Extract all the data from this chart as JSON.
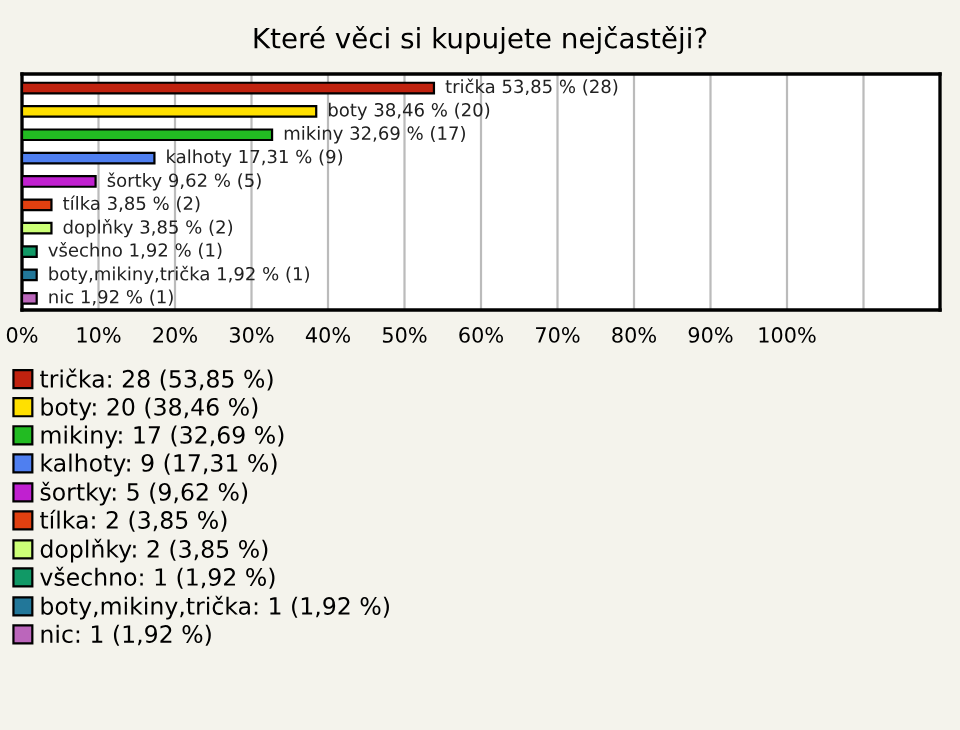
{
  "chart_data": {
    "type": "bar",
    "orientation": "horizontal",
    "title": "Které věci si kupujete nejčastěji?",
    "categories": [
      null,
      null,
      null,
      null,
      null,
      null,
      null,
      null,
      null,
      null
    ],
    "series": [
      {
        "name": "trička: 28 (53,85 %)",
        "color": "#c0220f",
        "values": [
          53.85,
          null,
          null,
          null,
          null,
          null,
          null,
          null,
          null,
          null
        ],
        "value_labels": [
          "trička 53,85 % (28)",
          null,
          null,
          null,
          null,
          null,
          null,
          null,
          null,
          null
        ]
      },
      {
        "name": "boty: 20 (38,46 %)",
        "color": "#ffe000",
        "values": [
          null,
          38.46,
          null,
          null,
          null,
          null,
          null,
          null,
          null,
          null
        ],
        "value_labels": [
          null,
          "boty 38,46 % (20)",
          null,
          null,
          null,
          null,
          null,
          null,
          null,
          null
        ]
      },
      {
        "name": "mikiny: 17 (32,69 %)",
        "color": "#22bb22",
        "values": [
          null,
          null,
          32.69,
          null,
          null,
          null,
          null,
          null,
          null,
          null
        ],
        "value_labels": [
          null,
          null,
          "mikiny 32,69 % (17)",
          null,
          null,
          null,
          null,
          null,
          null,
          null
        ]
      },
      {
        "name": "kalhoty: 9 (17,31 %)",
        "color": "#4f7ff0",
        "values": [
          null,
          null,
          null,
          17.31,
          null,
          null,
          null,
          null,
          null,
          null
        ],
        "value_labels": [
          null,
          null,
          null,
          "kalhoty 17,31 % (9)",
          null,
          null,
          null,
          null,
          null,
          null
        ]
      },
      {
        "name": "šortky: 5 (9,62 %)",
        "color": "#c020d0",
        "values": [
          null,
          null,
          null,
          null,
          9.62,
          null,
          null,
          null,
          null,
          null
        ],
        "value_labels": [
          null,
          null,
          null,
          null,
          "šortky 9,62 % (5)",
          null,
          null,
          null,
          null,
          null
        ]
      },
      {
        "name": "tílka: 2 (3,85 %)",
        "color": "#e04010",
        "values": [
          null,
          null,
          null,
          null,
          null,
          3.85,
          null,
          null,
          null,
          null
        ],
        "value_labels": [
          null,
          null,
          null,
          null,
          null,
          "tílka 3,85 % (2)",
          null,
          null,
          null,
          null
        ]
      },
      {
        "name": "doplňky: 2 (3,85 %)",
        "color": "#ccff77",
        "values": [
          null,
          null,
          null,
          null,
          null,
          null,
          3.85,
          null,
          null,
          null
        ],
        "value_labels": [
          null,
          null,
          null,
          null,
          null,
          null,
          "doplňky 3,85 % (2)",
          null,
          null,
          null
        ]
      },
      {
        "name": "všechno: 1 (1,92 %)",
        "color": "#119966",
        "values": [
          null,
          null,
          null,
          null,
          null,
          null,
          null,
          1.92,
          null,
          null
        ],
        "value_labels": [
          null,
          null,
          null,
          null,
          null,
          null,
          null,
          "všechno 1,92 % (1)",
          null,
          null
        ]
      },
      {
        "name": "boty,mikiny,trička: 1 (1,92 %)",
        "color": "#227799",
        "values": [
          null,
          null,
          null,
          null,
          null,
          null,
          null,
          null,
          1.92,
          null
        ],
        "value_labels": [
          null,
          null,
          null,
          null,
          null,
          null,
          null,
          null,
          "boty,mikiny,trička 1,92 % (1)",
          null
        ]
      },
      {
        "name": "nic: 1 (1,92 %)",
        "color": "#bb66bb",
        "values": [
          null,
          null,
          null,
          null,
          null,
          null,
          null,
          null,
          null,
          1.92
        ],
        "value_labels": [
          null,
          null,
          null,
          null,
          null,
          null,
          null,
          null,
          null,
          "nic 1,92 % (1)"
        ]
      }
    ],
    "xlim": [
      0,
      120
    ],
    "xticks": [
      {
        "value": 0,
        "label": "0%"
      },
      {
        "value": 10,
        "label": "10%"
      },
      {
        "value": 20,
        "label": "20%"
      },
      {
        "value": 30,
        "label": "30%"
      },
      {
        "value": 40,
        "label": "40%"
      },
      {
        "value": 50,
        "label": "50%"
      },
      {
        "value": 60,
        "label": "60%"
      },
      {
        "value": 70,
        "label": "70%"
      },
      {
        "value": 80,
        "label": "80%"
      },
      {
        "value": 90,
        "label": "90%"
      },
      {
        "value": 100,
        "label": "100%"
      },
      {
        "value": 110,
        "label": null
      }
    ],
    "grid": "x",
    "tick_labels": "x",
    "legend": "bottom"
  }
}
